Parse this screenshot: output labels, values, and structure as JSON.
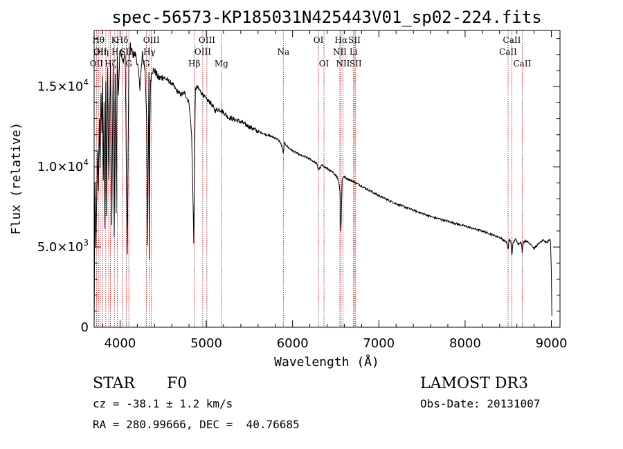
{
  "chart_data": {
    "type": "line",
    "title": "spec-56573-KP185031N425443V01_sp02-224.fits",
    "xlabel": "Wavelength (Å)",
    "ylabel": "Flux (relative)",
    "xlim": [
      3700,
      9100
    ],
    "ylim": [
      0,
      18500
    ],
    "x_ticks": [
      4000,
      5000,
      6000,
      7000,
      8000,
      9000
    ],
    "x_tick_labels": [
      "4000",
      "5000",
      "6000",
      "7000",
      "8000",
      "9000"
    ],
    "y_ticks": [
      0,
      5000,
      10000,
      15000
    ],
    "y_tick_labels": [
      {
        "mant": "0",
        "exp": ""
      },
      {
        "mant": "5.0×10",
        "exp": "3"
      },
      {
        "mant": "1.0×10",
        "exp": "4"
      },
      {
        "mant": "1.5×10",
        "exp": "4"
      }
    ],
    "line_color": "#000000",
    "marker_color": "#aa0000",
    "spectrum": {
      "x": [
        3700,
        3710,
        3720,
        3740,
        3750,
        3760,
        3770,
        3780,
        3790,
        3798,
        3806,
        3815,
        3825,
        3835,
        3845,
        3855,
        3870,
        3889,
        3905,
        3920,
        3933,
        3945,
        3955,
        3968,
        3980,
        4000,
        4030,
        4060,
        4085,
        4102,
        4120,
        4150,
        4180,
        4200,
        4230,
        4260,
        4290,
        4310,
        4320,
        4335,
        4340,
        4345,
        4355,
        4370,
        4400,
        4450,
        4500,
        4550,
        4600,
        4650,
        4700,
        4750,
        4800,
        4830,
        4850,
        4855,
        4861,
        4867,
        4875,
        4890,
        4920,
        4960,
        5000,
        5050,
        5100,
        5150,
        5200,
        5250,
        5300,
        5400,
        5500,
        5600,
        5700,
        5800,
        5850,
        5880,
        5893,
        5905,
        5950,
        6000,
        6100,
        6200,
        6280,
        6300,
        6340,
        6400,
        6450,
        6500,
        6530,
        6550,
        6557,
        6563,
        6569,
        6575,
        6590,
        6620,
        6700,
        6800,
        6900,
        7000,
        7200,
        7400,
        7600,
        7800,
        8000,
        8200,
        8400,
        8480,
        8498,
        8510,
        8530,
        8542,
        8555,
        8580,
        8620,
        8650,
        8662,
        8675,
        8700,
        8760,
        8800,
        8850,
        8900,
        8950,
        8980,
        8990,
        9000,
        9005
      ],
      "y": [
        0,
        9000,
        5000,
        11000,
        8500,
        13000,
        10000,
        14500,
        12000,
        15500,
        9000,
        14000,
        6000,
        15500,
        7000,
        16000,
        9000,
        16500,
        6500,
        16500,
        5500,
        16000,
        7000,
        17000,
        14500,
        17500,
        16500,
        17000,
        4500,
        16500,
        17500,
        17000,
        17000,
        16500,
        15000,
        17000,
        16000,
        13000,
        5000,
        16000,
        4200,
        12000,
        15500,
        16000,
        16000,
        15500,
        15600,
        15400,
        15200,
        14800,
        14500,
        14600,
        14000,
        12000,
        7000,
        5200,
        8500,
        12000,
        14800,
        15000,
        14800,
        14500,
        14200,
        14000,
        13500,
        13600,
        13400,
        13100,
        13000,
        12800,
        12500,
        12200,
        12000,
        11800,
        11600,
        11200,
        10800,
        11500,
        11200,
        11000,
        10700,
        10500,
        10200,
        9800,
        10100,
        9900,
        9700,
        9500,
        9200,
        8500,
        6000,
        6500,
        8000,
        9200,
        9400,
        9300,
        9100,
        8800,
        8500,
        8200,
        7700,
        7300,
        6900,
        6600,
        6300,
        6000,
        5600,
        5300,
        4800,
        5500,
        5300,
        4500,
        5200,
        5500,
        5200,
        5300,
        4700,
        5300,
        5400,
        5200,
        4900,
        5200,
        5400,
        5300,
        5500,
        5300,
        3500,
        700
      ]
    },
    "lines": [
      {
        "x": 3727,
        "label": "OII",
        "row": 3
      },
      {
        "x": 3750,
        "label": "Hθ",
        "row": 1
      },
      {
        "x": 3770,
        "label": "OII",
        "row": 2
      },
      {
        "x": 3797,
        "label": "Hη",
        "row": 2
      },
      {
        "x": 3835,
        "label": "",
        "row": 0
      },
      {
        "x": 3869,
        "label": "",
        "row": 0
      },
      {
        "x": 3889,
        "label": "Hζ",
        "row": 3
      },
      {
        "x": 3934,
        "label": "K",
        "row": 1
      },
      {
        "x": 3968,
        "label": "Hε",
        "row": 2
      },
      {
        "x": 4026,
        "label": "Hδ",
        "row": 1
      },
      {
        "x": 4072,
        "label": "SII",
        "row": 2
      },
      {
        "x": 4102,
        "label": "G",
        "row": 3
      },
      {
        "x": 4305,
        "label": "G",
        "row": 3
      },
      {
        "x": 4340,
        "label": "Hγ",
        "row": 2
      },
      {
        "x": 4364,
        "label": "OIII",
        "row": 1
      },
      {
        "x": 4861,
        "label": "Hβ",
        "row": 3
      },
      {
        "x": 4959,
        "label": "OIII",
        "row": 2
      },
      {
        "x": 5007,
        "label": "OIII",
        "row": 1
      },
      {
        "x": 5175,
        "label": "Mg",
        "row": 3
      },
      {
        "x": 5893,
        "label": "Na",
        "row": 2
      },
      {
        "x": 6300,
        "label": "OI",
        "row": 1
      },
      {
        "x": 6364,
        "label": "OI",
        "row": 3
      },
      {
        "x": 6548,
        "label": "NII",
        "row": 2
      },
      {
        "x": 6563,
        "label": "Hα",
        "row": 1
      },
      {
        "x": 6584,
        "label": "NII",
        "row": 3
      },
      {
        "x": 6707,
        "label": "Li",
        "row": 2
      },
      {
        "x": 6717,
        "label": "SII",
        "row": 1
      },
      {
        "x": 6731,
        "label": "SII",
        "row": 3
      },
      {
        "x": 8498,
        "label": "CaII",
        "row": 2
      },
      {
        "x": 8542,
        "label": "CaII",
        "row": 1
      },
      {
        "x": 8662,
        "label": "CaII",
        "row": 3
      }
    ]
  },
  "info": {
    "class": "STAR",
    "subclass": "F0",
    "survey": "LAMOST DR3",
    "cz": "cz = -38.1 ± 1.2 km/s",
    "obs_date": "Obs-Date: 20131007",
    "coords": "RA = 280.99666, DEC =  40.76685"
  }
}
